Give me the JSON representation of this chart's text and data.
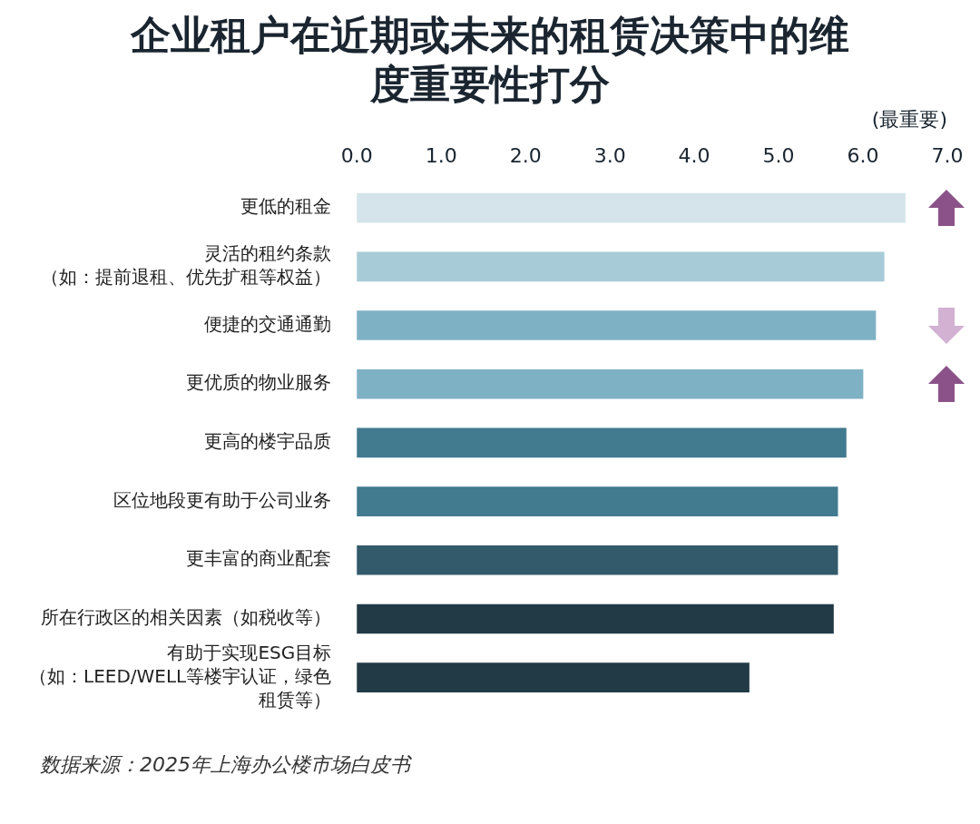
{
  "chart_data": {
    "type": "bar",
    "orientation": "horizontal",
    "title": "企业租户在近期或未来的租赁决策中的维度重要性打分",
    "xlabel": "(最重要)",
    "categories": [
      "更低的租金",
      "灵活的租约条款（如：提前退租、优先扩租等权益）",
      "便捷的交通通勤",
      "更优质的物业服务",
      "更高的楼宇品质",
      "区位地段更有助于公司业务",
      "更丰富的商业配套",
      "所在行政区的相关因素（如税收等）",
      "有助于实现ESG目标（如：LEED/WELL等楼宇认证，绿色租赁等）"
    ],
    "values": [
      6.5,
      6.25,
      6.15,
      6.0,
      5.8,
      5.7,
      5.7,
      5.65,
      4.65
    ],
    "colors": [
      "#d4e4ea",
      "#a8cbd8",
      "#7fb1c5",
      "#7fb1c5",
      "#427a8f",
      "#427a8f",
      "#325a6a",
      "#223a46",
      "#223a46"
    ],
    "xlim": [
      0,
      7
    ],
    "xticks": [
      {
        "value": 0,
        "label": "0.0"
      },
      {
        "value": 1,
        "label": "1.0"
      },
      {
        "value": 2,
        "label": "2.0"
      },
      {
        "value": 3,
        "label": "3.0"
      },
      {
        "value": 4,
        "label": "4.0"
      },
      {
        "value": 5,
        "label": "5.0"
      },
      {
        "value": 6,
        "label": "6.0"
      },
      {
        "value": 7,
        "label": "7.0"
      }
    ],
    "grid": false,
    "legend": false,
    "annotations": [
      "数据来源：2025年上海办公楼市场白皮书"
    ]
  }
}
